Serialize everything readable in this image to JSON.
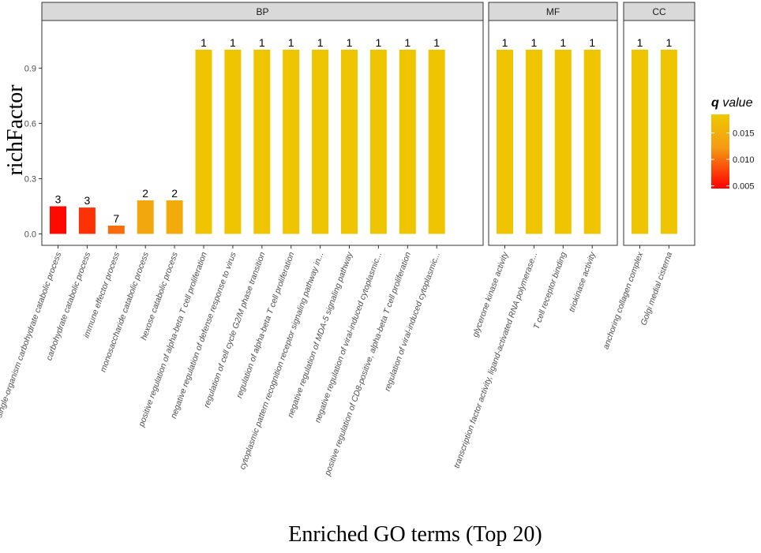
{
  "chart_data": {
    "type": "bar",
    "title": "",
    "xlabel": "Enriched GO terms (Top 20)",
    "ylabel": "richFactor",
    "ylim": [
      -0.04,
      1.1
    ],
    "yticks": [
      0.0,
      0.3,
      0.6,
      0.9
    ],
    "ytick_labels": [
      "0.0",
      "0.3",
      "0.6",
      "0.9"
    ],
    "grid": false,
    "facets": [
      {
        "name": "BP",
        "categories": [
          "single-organism carbohydrate catabolic process",
          "carbohydrate catabolic process",
          "immune effector process",
          "monosaccharide catabolic process",
          "hexose catabolic process",
          "positive regulation of alpha-beta T cell proliferation",
          "negative regulation of defense response to virus",
          "regulation of cell cycle G2/M phase transition",
          "regulation of alpha-beta T cell proliferation",
          "cytoplasmic pattern recognition receptor signaling pathway in...",
          "negative regulation of MDA-5 signaling pathway",
          "negative regulation of viral-induced cytoplasmic...",
          "positive regulation of CD8-positive, alpha-beta T cell proliferation",
          "regulation of viral-induced cytoplasmic..."
        ],
        "values": [
          0.15,
          0.143,
          0.045,
          0.182,
          0.182,
          1,
          1,
          1,
          1,
          1,
          1,
          1,
          1,
          1
        ],
        "counts": [
          "3",
          "3",
          "7",
          "2",
          "2",
          "1",
          "1",
          "1",
          "1",
          "1",
          "1",
          "1",
          "1",
          "1"
        ],
        "qvalues": [
          0.005,
          0.007,
          0.01,
          0.014,
          0.0145,
          0.018,
          0.018,
          0.018,
          0.018,
          0.018,
          0.018,
          0.018,
          0.018,
          0.018
        ]
      },
      {
        "name": "MF",
        "categories": [
          "glycerone kinase activity",
          "transcription factor activity, ligand-activated RNA polymerase...",
          "T cell receptor binding",
          "triokinase activity"
        ],
        "values": [
          1,
          1,
          1,
          1
        ],
        "counts": [
          "1",
          "1",
          "1",
          "1"
        ],
        "qvalues": [
          0.018,
          0.018,
          0.018,
          0.018
        ]
      },
      {
        "name": "CC",
        "categories": [
          "anchoring collagen complex",
          "Golgi medial cisterna"
        ],
        "values": [
          1,
          1
        ],
        "counts": [
          "1",
          "1"
        ],
        "qvalues": [
          0.018,
          0.018
        ]
      }
    ],
    "legend": {
      "title_italic": "q",
      "title_rest": " value",
      "position": "right",
      "range": [
        0.0045,
        0.0185
      ],
      "ticks": [
        0.005,
        0.01,
        0.015
      ],
      "tick_labels": [
        "0.005",
        "0.010",
        "0.015"
      ],
      "color_low": "#ff0000",
      "color_mid": "#f59a14",
      "color_high": "#eec900"
    },
    "colors": {
      "strip_fill": "#d9d9d9",
      "panel_border": "#333333",
      "axis_text": "#4d4d4d"
    }
  }
}
